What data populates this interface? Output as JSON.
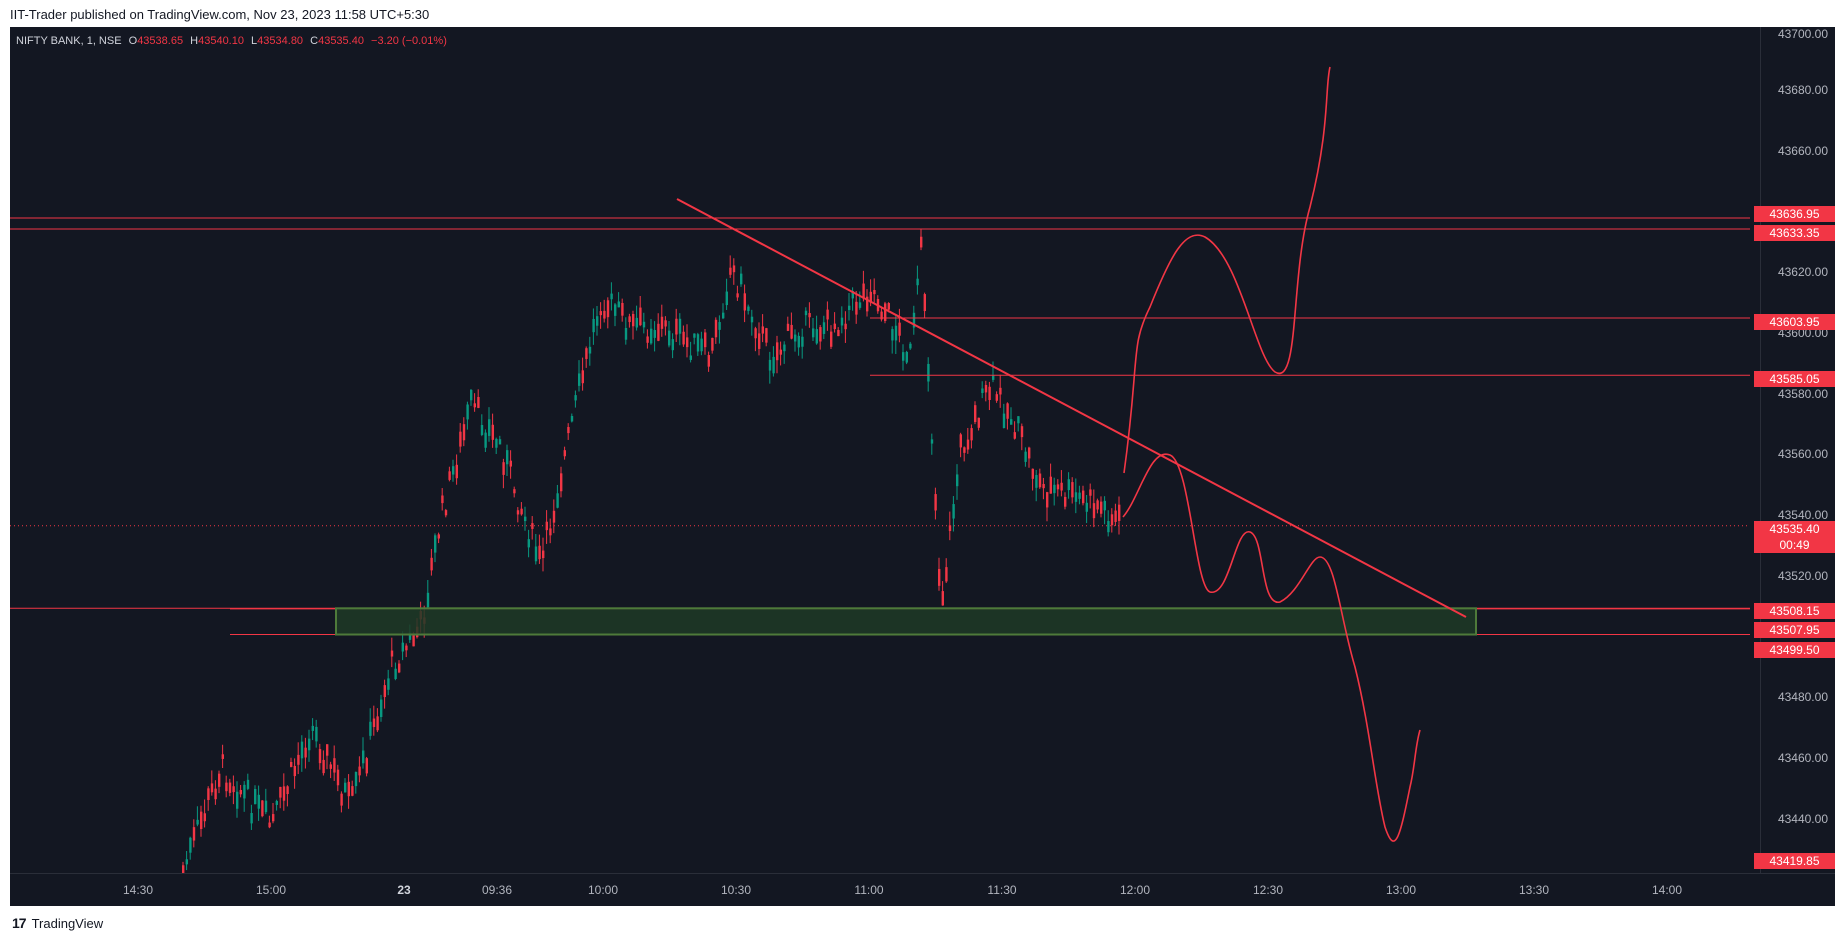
{
  "header": {
    "published_text": "IIT-Trader published on TradingView.com, Nov 23, 2023 11:58 UTC+5:30"
  },
  "legend": {
    "symbol": "NIFTY BANK, 1, NSE",
    "o_label": "O",
    "o_value": "43538.65",
    "h_label": "H",
    "h_value": "43540.10",
    "l_label": "L",
    "l_value": "43534.80",
    "c_label": "C",
    "c_value": "43535.40",
    "change": "−3.20 (−0.01%)"
  },
  "price_axis": {
    "ticks": [
      "43700.00",
      "43680.00",
      "43660.00",
      "43620.00",
      "43600.00",
      "43580.00",
      "43560.00",
      "43540.00",
      "43520.00",
      "43480.00",
      "43460.00",
      "43440.00"
    ],
    "badges": {
      "l1": "43636.95",
      "l2": "43633.35",
      "l3": "43603.95",
      "l4": "43585.05",
      "last_price": "43535.40",
      "countdown": "00:49",
      "l5": "43508.15",
      "l6": "43507.95",
      "l7": "43499.50",
      "l8": "43419.85"
    }
  },
  "time_axis": {
    "labels": [
      "14:30",
      "15:00",
      "23",
      "09:36",
      "10:00",
      "10:30",
      "11:00",
      "11:30",
      "12:00",
      "12:30",
      "13:00",
      "13:30",
      "14:00"
    ]
  },
  "footer": {
    "brand": "TradingView"
  },
  "colors": {
    "background": "#131722",
    "up": "#089981",
    "down": "#f23645",
    "drawing": "#f23645",
    "zone_fill": "#1e3a26",
    "zone_border": "#4e7a3a"
  },
  "icons": {
    "logo": "tradingview-logo-icon"
  },
  "chart_data": {
    "type": "candlestick",
    "symbol": "NIFTY BANK",
    "interval": "1",
    "exchange": "NSE",
    "ylim": [
      43419.85,
      43700
    ],
    "last": {
      "open": 43538.65,
      "high": 43540.1,
      "low": 43534.8,
      "close": 43535.4
    },
    "horizontal_lines": [
      43636.95,
      43633.35,
      43603.95,
      43585.05,
      43508.15,
      43507.95,
      43499.5
    ],
    "zone": {
      "top": 43508.15,
      "bottom": 43499.5
    },
    "trendline": {
      "from": [
        "10:18",
        43640
      ],
      "to": [
        "13:14",
        43507
      ]
    },
    "time_ticks": [
      "14:30",
      "15:00",
      "23",
      "09:36",
      "10:00",
      "10:30",
      "11:00",
      "11:30",
      "12:00",
      "12:30",
      "13:00",
      "13:30",
      "14:00"
    ]
  }
}
